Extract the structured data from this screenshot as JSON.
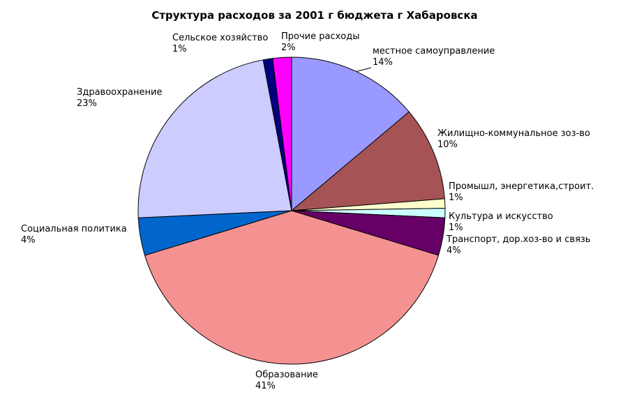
{
  "chart_data": {
    "type": "pie",
    "title": "Структура расходов за 2001 г бюджета г Хабаровска",
    "start_angle_deg": 0,
    "direction": "clockwise",
    "slices": [
      {
        "name": "местное самоуправление",
        "value": 14,
        "label": "14%",
        "color": "#9999ff"
      },
      {
        "name": "Жилищно-коммунальное зоз-во",
        "value": 10,
        "label": "10%",
        "color": "#a65356"
      },
      {
        "name": "Промышл, энергетика,строит.",
        "value": 1,
        "label": "1%",
        "color": "#ffffcc"
      },
      {
        "name": "Культура и искусство",
        "value": 1,
        "label": "1%",
        "color": "#ccffff"
      },
      {
        "name": "Транспорт, дор.хоз-во и связь",
        "value": 4,
        "label": "4%",
        "color": "#660066"
      },
      {
        "name": "Образование",
        "value": 41,
        "label": "41%",
        "color": "#f49292"
      },
      {
        "name": "Социальная политика",
        "value": 4,
        "label": "4%",
        "color": "#0066cc"
      },
      {
        "name": "Здравоохранение",
        "value": 23,
        "label": "23%",
        "color": "#ccccff"
      },
      {
        "name": "Сельское хозяйство",
        "value": 1,
        "label": "1%",
        "color": "#000080"
      },
      {
        "name": "Прочие расходы",
        "value": 2,
        "label": "2%",
        "color": "#ff00ff"
      }
    ]
  }
}
